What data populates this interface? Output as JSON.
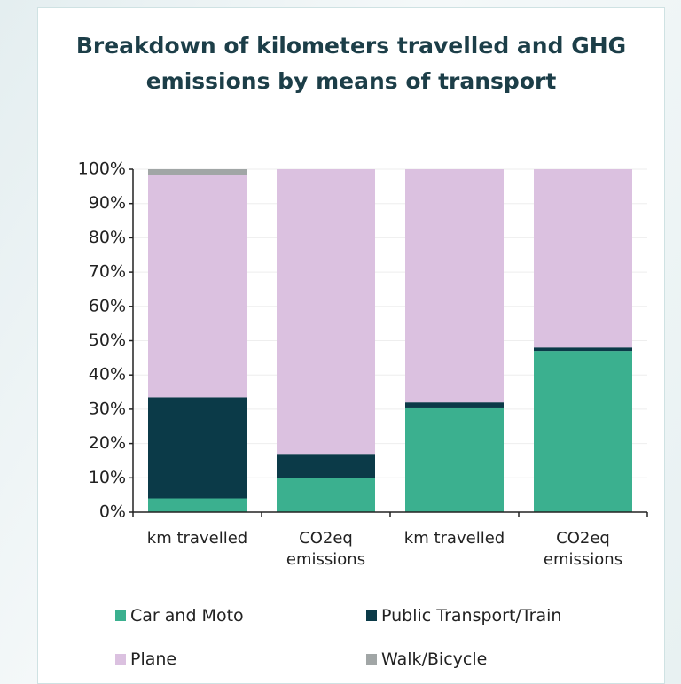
{
  "chart_data": {
    "type": "stacked_bar",
    "title": "Breakdown of kilometers travelled and GHG emissions by means of transport",
    "categories": [
      "km travelled",
      "CO2eq emissions",
      "km travelled",
      "CO2eq emissions"
    ],
    "series": [
      {
        "name": "Car and Moto",
        "color": "#3bb08f",
        "values": [
          4,
          10,
          30.5,
          47
        ]
      },
      {
        "name": "Public Transport/Train",
        "color": "#0b3a48",
        "values": [
          29.5,
          7,
          1.5,
          1
        ]
      },
      {
        "name": "Plane",
        "color": "#dbc1e0",
        "values": [
          64.7,
          83,
          68,
          52
        ]
      },
      {
        "name": "Walk/Bicycle",
        "color": "#a1a6a6",
        "values": [
          1.8,
          0,
          0,
          0
        ]
      }
    ],
    "ylim": [
      0,
      100
    ],
    "yticks": [
      {
        "value": 0,
        "label": "0%"
      },
      {
        "value": 10,
        "label": "10%"
      },
      {
        "value": 20,
        "label": "20%"
      },
      {
        "value": 30,
        "label": "30%"
      },
      {
        "value": 40,
        "label": "40%"
      },
      {
        "value": 50,
        "label": "50%"
      },
      {
        "value": 60,
        "label": "60%"
      },
      {
        "value": 70,
        "label": "70%"
      },
      {
        "value": 80,
        "label": "80%"
      },
      {
        "value": 90,
        "label": "90%"
      },
      {
        "value": 100,
        "label": "100%"
      }
    ],
    "grid": true
  }
}
